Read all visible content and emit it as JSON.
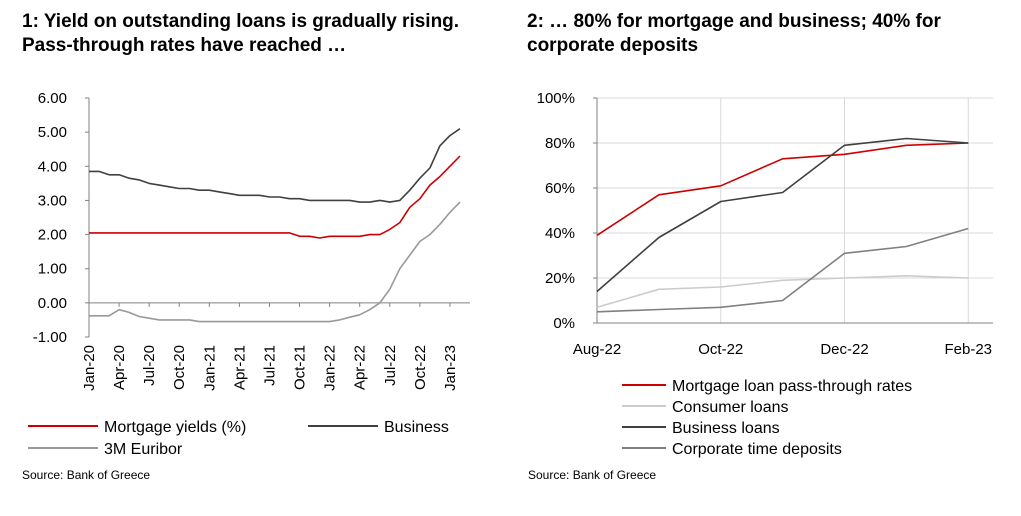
{
  "chart_data": [
    {
      "type": "line",
      "title": "1: Yield on outstanding loans is gradually rising. Pass-through rates have reached …",
      "source": "Source: Bank of Greece",
      "ylim": [
        -1,
        6
      ],
      "y_ticks": [
        "-1.00",
        "0.00",
        "1.00",
        "2.00",
        "3.00",
        "4.00",
        "5.00",
        "6.00"
      ],
      "x_range": [
        0,
        38
      ],
      "x_ticks": [
        {
          "i": 0,
          "label": "Jan-20"
        },
        {
          "i": 3,
          "label": "Apr-20"
        },
        {
          "i": 6,
          "label": "Jul-20"
        },
        {
          "i": 9,
          "label": "Oct-20"
        },
        {
          "i": 12,
          "label": "Jan-21"
        },
        {
          "i": 15,
          "label": "Apr-21"
        },
        {
          "i": 18,
          "label": "Jul-21"
        },
        {
          "i": 21,
          "label": "Oct-21"
        },
        {
          "i": 24,
          "label": "Jan-22"
        },
        {
          "i": 27,
          "label": "Apr-22"
        },
        {
          "i": 30,
          "label": "Jul-22"
        },
        {
          "i": 33,
          "label": "Oct-22"
        },
        {
          "i": 36,
          "label": "Jan-23"
        }
      ],
      "series": [
        {
          "name": "Mortgage yields (%)",
          "color": "#cc0000",
          "x": [
            0,
            20,
            21,
            22,
            23,
            24,
            25,
            26,
            27,
            28,
            29,
            30,
            31,
            32,
            33,
            34,
            35,
            36,
            37
          ],
          "values": [
            2.05,
            2.05,
            1.95,
            1.95,
            1.9,
            1.95,
            1.95,
            1.95,
            1.95,
            2.0,
            2.0,
            2.15,
            2.35,
            2.8,
            3.05,
            3.45,
            3.7,
            4.0,
            4.3
          ]
        },
        {
          "name": "Business",
          "color": "#404040",
          "x": [
            0,
            1,
            2,
            3,
            4,
            5,
            6,
            7,
            8,
            9,
            10,
            11,
            12,
            13,
            14,
            15,
            16,
            17,
            18,
            19,
            20,
            21,
            22,
            23,
            24,
            25,
            26,
            27,
            28,
            29,
            30,
            31,
            32,
            33,
            34,
            35,
            36,
            37
          ],
          "values": [
            3.85,
            3.85,
            3.75,
            3.75,
            3.65,
            3.6,
            3.5,
            3.45,
            3.4,
            3.35,
            3.35,
            3.3,
            3.3,
            3.25,
            3.2,
            3.15,
            3.15,
            3.15,
            3.1,
            3.1,
            3.05,
            3.05,
            3.0,
            3.0,
            3.0,
            3.0,
            3.0,
            2.95,
            2.95,
            3.0,
            2.95,
            3.0,
            3.3,
            3.65,
            3.95,
            4.6,
            4.9,
            5.1
          ]
        },
        {
          "name": "3M Euribor",
          "color": "#999999",
          "x": [
            0,
            1,
            2,
            3,
            4,
            5,
            6,
            7,
            8,
            9,
            10,
            11,
            12,
            20,
            24,
            25,
            26,
            27,
            28,
            29,
            30,
            31,
            32,
            33,
            34,
            35,
            36,
            37
          ],
          "values": [
            -0.38,
            -0.38,
            -0.38,
            -0.2,
            -0.28,
            -0.4,
            -0.45,
            -0.5,
            -0.5,
            -0.5,
            -0.5,
            -0.55,
            -0.55,
            -0.55,
            -0.55,
            -0.5,
            -0.42,
            -0.35,
            -0.2,
            0.0,
            0.4,
            1.0,
            1.4,
            1.8,
            2.0,
            2.3,
            2.65,
            2.95
          ]
        }
      ],
      "legend": [
        "Mortgage yields (%)",
        "Business",
        "3M Euribor"
      ]
    },
    {
      "type": "line",
      "title": "2: … 80% for mortgage and business; 40% for corporate deposits",
      "source": "Source: Bank of Greece",
      "ylim": [
        0,
        100
      ],
      "y_ticks": [
        "0%",
        "20%",
        "40%",
        "60%",
        "80%",
        "100%"
      ],
      "x_range": [
        0,
        6.4
      ],
      "x_ticks": [
        {
          "i": 0,
          "label": "Aug-22"
        },
        {
          "i": 2,
          "label": "Oct-22"
        },
        {
          "i": 4,
          "label": "Dec-22"
        },
        {
          "i": 6,
          "label": "Feb-23"
        }
      ],
      "series": [
        {
          "name": "Mortgage loan pass-through rates",
          "color": "#cc0000",
          "x": [
            0,
            1,
            2,
            3,
            4,
            5,
            6
          ],
          "values": [
            39,
            57,
            61,
            73,
            75,
            79,
            80
          ]
        },
        {
          "name": "Consumer loans",
          "color": "#cccccc",
          "x": [
            0,
            1,
            2,
            3,
            4,
            5,
            6
          ],
          "values": [
            7,
            15,
            16,
            19,
            20,
            21,
            20
          ]
        },
        {
          "name": "Business loans",
          "color": "#404040",
          "x": [
            0,
            1,
            2,
            3,
            4,
            5,
            6
          ],
          "values": [
            14,
            38,
            54,
            58,
            79,
            82,
            80
          ]
        },
        {
          "name": "Corporate time deposits",
          "color": "#808080",
          "x": [
            0,
            1,
            2,
            3,
            4,
            5,
            6
          ],
          "values": [
            5,
            6,
            7,
            10,
            31,
            34,
            42
          ]
        }
      ],
      "legend": [
        "Mortgage loan pass-through rates",
        "Consumer loans",
        "Business loans",
        "Corporate time deposits"
      ]
    }
  ]
}
